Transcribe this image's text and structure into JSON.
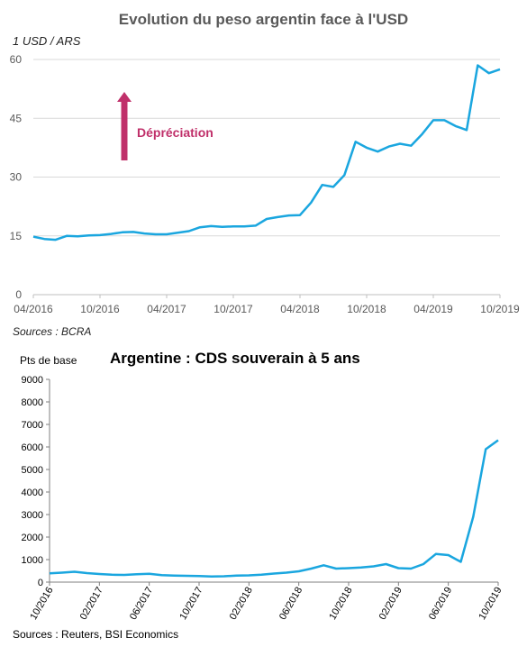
{
  "chart_data": [
    {
      "type": "line",
      "title": "Evolution du peso argentin face à l'USD",
      "ylabel": "1 USD / ARS",
      "source": "Sources : BCRA",
      "ylim": [
        0,
        60
      ],
      "yticks": [
        0,
        15,
        30,
        45,
        60
      ],
      "xlim": [
        "2016-04",
        "2019-10"
      ],
      "xtick_labels": [
        "04/2016",
        "10/2016",
        "04/2017",
        "10/2017",
        "04/2018",
        "10/2018",
        "04/2019",
        "10/2019"
      ],
      "grid": "horizontal",
      "line_color": "#1aa6df",
      "annotation": {
        "text": "Dépréciation",
        "arrow": "up",
        "color": "#c0306a"
      },
      "x": [
        "2016-04",
        "2016-05",
        "2016-06",
        "2016-07",
        "2016-08",
        "2016-09",
        "2016-10",
        "2016-11",
        "2016-12",
        "2017-01",
        "2017-02",
        "2017-03",
        "2017-04",
        "2017-05",
        "2017-06",
        "2017-07",
        "2017-08",
        "2017-09",
        "2017-10",
        "2017-11",
        "2017-12",
        "2018-01",
        "2018-02",
        "2018-03",
        "2018-04",
        "2018-05",
        "2018-06",
        "2018-07",
        "2018-08",
        "2018-09",
        "2018-10",
        "2018-11",
        "2018-12",
        "2019-01",
        "2019-02",
        "2019-03",
        "2019-04",
        "2019-05",
        "2019-06",
        "2019-07",
        "2019-08",
        "2019-09",
        "2019-10"
      ],
      "y": [
        14.8,
        14.2,
        14.0,
        15.0,
        14.9,
        15.1,
        15.2,
        15.5,
        15.9,
        16.0,
        15.6,
        15.4,
        15.4,
        15.8,
        16.2,
        17.2,
        17.5,
        17.3,
        17.4,
        17.4,
        17.6,
        19.3,
        19.8,
        20.2,
        20.3,
        23.5,
        28.0,
        27.5,
        30.5,
        39.0,
        37.5,
        36.5,
        37.8,
        38.5,
        38.0,
        41.0,
        44.5,
        44.5,
        43.0,
        42.0,
        58.5,
        56.5,
        57.5
      ]
    },
    {
      "type": "line",
      "title": "Argentine : CDS souverain à 5 ans",
      "ylabel": "Pts de base",
      "source": "Sources : Reuters, BSI Economics",
      "ylim": [
        0,
        9000
      ],
      "yticks": [
        0,
        1000,
        2000,
        3000,
        4000,
        5000,
        6000,
        7000,
        8000,
        9000
      ],
      "xlim": [
        "2016-10",
        "2019-10"
      ],
      "xtick_labels": [
        "10/2016",
        "02/2017",
        "06/2017",
        "10/2017",
        "02/2018",
        "06/2018",
        "10/2018",
        "02/2019",
        "06/2019",
        "10/2019"
      ],
      "grid": "none",
      "line_color": "#1aa6df",
      "x": [
        "2016-10",
        "2016-11",
        "2016-12",
        "2017-01",
        "2017-02",
        "2017-03",
        "2017-04",
        "2017-05",
        "2017-06",
        "2017-07",
        "2017-08",
        "2017-09",
        "2017-10",
        "2017-11",
        "2017-12",
        "2018-01",
        "2018-02",
        "2018-03",
        "2018-04",
        "2018-05",
        "2018-06",
        "2018-07",
        "2018-08",
        "2018-09",
        "2018-10",
        "2018-11",
        "2018-12",
        "2019-01",
        "2019-02",
        "2019-03",
        "2019-04",
        "2019-05",
        "2019-06",
        "2019-07",
        "2019-08",
        "2019-09",
        "2019-10"
      ],
      "y": [
        390,
        420,
        460,
        400,
        360,
        330,
        320,
        350,
        370,
        310,
        290,
        280,
        270,
        250,
        260,
        290,
        300,
        330,
        380,
        420,
        480,
        600,
        750,
        600,
        620,
        650,
        700,
        800,
        620,
        600,
        800,
        1250,
        1200,
        900,
        2900,
        5900,
        6300
      ]
    }
  ]
}
